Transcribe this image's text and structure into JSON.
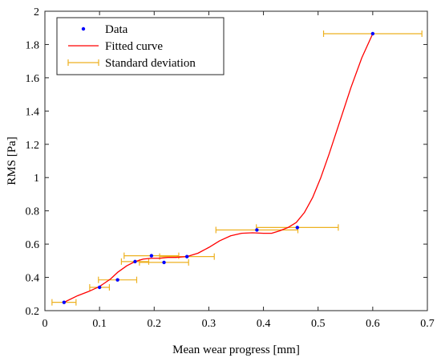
{
  "chart_data": {
    "type": "scatter",
    "xlabel": "Mean wear progress [mm]",
    "ylabel": "RMS [Pa]",
    "xlim": [
      0,
      0.7
    ],
    "ylim": [
      0.2,
      2
    ],
    "x_ticks": [
      0,
      0.1,
      0.2,
      0.3,
      0.4,
      0.5,
      0.6,
      0.7
    ],
    "x_tick_labels": [
      "0",
      "0.1",
      "0.2",
      "0.3",
      "0.4",
      "0.5",
      "0.6",
      "0.7"
    ],
    "y_ticks": [
      0.2,
      0.4,
      0.6,
      0.8,
      1.0,
      1.2,
      1.4,
      1.6,
      1.8,
      2.0
    ],
    "y_tick_labels": [
      "0.2",
      "0.4",
      "0.6",
      "0.8",
      "1",
      "1.2",
      "1.4",
      "1.6",
      "1.8",
      "2"
    ],
    "grid": false,
    "legend_position": "top-left",
    "series": [
      {
        "name": "Data",
        "kind": "points",
        "color": "#0000ff",
        "x": [
          0.035,
          0.1,
          0.133,
          0.165,
          0.195,
          0.218,
          0.26,
          0.388,
          0.462,
          0.6
        ],
        "y": [
          0.25,
          0.34,
          0.385,
          0.495,
          0.53,
          0.49,
          0.525,
          0.685,
          0.7,
          1.865
        ]
      },
      {
        "name": "Fitted curve",
        "kind": "line",
        "color": "#ff0000",
        "x": [
          0.035,
          0.06,
          0.08,
          0.1,
          0.12,
          0.133,
          0.15,
          0.165,
          0.18,
          0.195,
          0.21,
          0.225,
          0.24,
          0.26,
          0.28,
          0.3,
          0.32,
          0.34,
          0.36,
          0.38,
          0.4,
          0.415,
          0.43,
          0.445,
          0.46,
          0.475,
          0.49,
          0.505,
          0.52,
          0.54,
          0.56,
          0.58,
          0.6
        ],
        "y": [
          0.25,
          0.29,
          0.315,
          0.345,
          0.39,
          0.43,
          0.47,
          0.495,
          0.51,
          0.515,
          0.515,
          0.52,
          0.52,
          0.525,
          0.545,
          0.58,
          0.62,
          0.65,
          0.665,
          0.668,
          0.665,
          0.665,
          0.68,
          0.7,
          0.73,
          0.79,
          0.88,
          1.0,
          1.14,
          1.34,
          1.54,
          1.72,
          1.865
        ]
      },
      {
        "name": "Standard deviation",
        "kind": "xerror",
        "color": "#edb120",
        "x": [
          0.035,
          0.1,
          0.133,
          0.165,
          0.195,
          0.218,
          0.26,
          0.388,
          0.462,
          0.6
        ],
        "y": [
          0.25,
          0.34,
          0.385,
          0.495,
          0.53,
          0.49,
          0.525,
          0.685,
          0.7,
          1.865
        ],
        "xerr": [
          0.022,
          0.018,
          0.035,
          0.025,
          0.05,
          0.045,
          0.05,
          0.075,
          0.075,
          0.09
        ]
      }
    ]
  }
}
